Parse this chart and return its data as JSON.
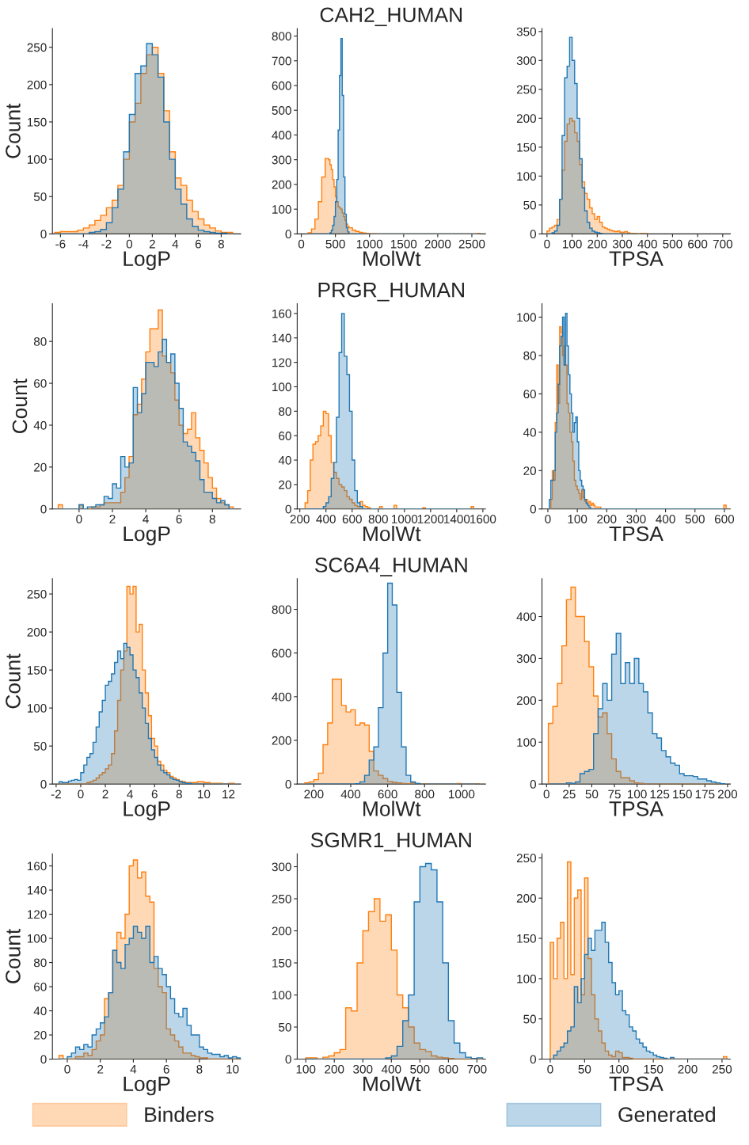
{
  "chart_data": [
    {
      "type": "histogram",
      "xlabel": "LogP",
      "ylabel": "Count",
      "xlim": [
        -6.7,
        9.7
      ],
      "xticks": [
        -6,
        -4,
        -2,
        0,
        2,
        4,
        6,
        8
      ],
      "ylim": [
        0,
        275
      ],
      "yticks": [
        0,
        50,
        100,
        150,
        200,
        250
      ],
      "bins": [
        -6.5,
        -6,
        -5.5,
        -5,
        -4.5,
        -4,
        -3.5,
        -3,
        -2.5,
        -2,
        -1.5,
        -1,
        -0.5,
        0,
        0.5,
        1,
        1.5,
        2,
        2.5,
        3,
        3.5,
        4,
        4.5,
        5,
        5.5,
        6,
        6.5,
        7,
        7.5,
        8,
        8.5,
        9
      ],
      "series": [
        {
          "color": "#ff7f0e",
          "values": [
            2,
            3,
            3,
            3,
            5,
            8,
            12,
            18,
            25,
            35,
            45,
            65,
            100,
            150,
            175,
            215,
            240,
            250,
            215,
            165,
            110,
            75,
            65,
            45,
            30,
            20,
            12,
            8,
            4,
            2,
            2
          ]
        },
        {
          "color": "#1f77b4",
          "values": [
            0,
            0,
            0,
            0,
            0,
            0,
            2,
            3,
            6,
            15,
            35,
            60,
            110,
            160,
            215,
            225,
            255,
            240,
            210,
            150,
            100,
            60,
            40,
            20,
            10,
            5,
            3,
            2,
            1,
            1,
            0
          ]
        }
      ]
    },
    {
      "type": "histogram",
      "title": "CAH2_HUMAN",
      "xlabel": "MolWt",
      "xlim": [
        -60,
        2700
      ],
      "xticks": [
        0,
        500,
        1000,
        1500,
        2000,
        2500
      ],
      "ylim": [
        0,
        830
      ],
      "yticks": [
        0,
        100,
        200,
        300,
        400,
        500,
        600,
        700,
        800
      ],
      "bins": [
        100,
        150,
        200,
        250,
        300,
        350,
        400,
        420,
        440,
        460,
        480,
        500,
        520,
        540,
        560,
        580,
        600,
        620,
        640,
        660,
        680,
        700,
        750,
        800,
        850,
        900,
        950,
        1000,
        1050,
        1100,
        2580,
        2620
      ],
      "series": [
        {
          "color": "#ff7f0e",
          "values": [
            5,
            20,
            60,
            130,
            230,
            305,
            300,
            280,
            260,
            220,
            190,
            150,
            130,
            110,
            105,
            100,
            85,
            70,
            55,
            40,
            30,
            25,
            15,
            10,
            6,
            4,
            2,
            1,
            1,
            0,
            2
          ]
        },
        {
          "color": "#1f77b4",
          "values": [
            0,
            0,
            0,
            0,
            0,
            0,
            0,
            5,
            15,
            35,
            70,
            130,
            220,
            420,
            640,
            790,
            560,
            230,
            80,
            25,
            8,
            0,
            0,
            0,
            0,
            0,
            0,
            0,
            0,
            0,
            0
          ]
        }
      ]
    },
    {
      "type": "histogram",
      "xlabel": "TPSA",
      "xlim": [
        -20,
        730
      ],
      "xticks": [
        0,
        100,
        200,
        300,
        400,
        500,
        600,
        700
      ],
      "ylim": [
        0,
        355
      ],
      "yticks": [
        0,
        50,
        100,
        150,
        200,
        250,
        300,
        350
      ],
      "bins": [
        0,
        10,
        20,
        30,
        40,
        50,
        60,
        70,
        80,
        90,
        100,
        110,
        120,
        130,
        140,
        150,
        160,
        170,
        180,
        190,
        200,
        210,
        220,
        230,
        240,
        250,
        260,
        270,
        280,
        290,
        300,
        310,
        320,
        330,
        340,
        350,
        360,
        370,
        380,
        390,
        400
      ],
      "series": [
        {
          "color": "#ff7f0e",
          "values": [
            5,
            10,
            12,
            15,
            25,
            60,
            110,
            160,
            190,
            200,
            195,
            175,
            160,
            120,
            90,
            70,
            60,
            45,
            35,
            25,
            30,
            20,
            12,
            10,
            8,
            6,
            5,
            4,
            5,
            3,
            3,
            4,
            2,
            1,
            1,
            1,
            0,
            1,
            1,
            1
          ]
        },
        {
          "color": "#1f77b4",
          "values": [
            0,
            0,
            2,
            5,
            15,
            60,
            170,
            270,
            290,
            340,
            300,
            260,
            200,
            130,
            80,
            40,
            20,
            10,
            5,
            3,
            2,
            1,
            0,
            0,
            0,
            0,
            0,
            0,
            0,
            0,
            0,
            0,
            0,
            0,
            0,
            0,
            0,
            0,
            0,
            0
          ]
        }
      ]
    },
    {
      "type": "histogram",
      "xlabel": "LogP",
      "ylabel": "Count",
      "xlim": [
        -1.6,
        9.7
      ],
      "xticks": [
        0,
        2,
        4,
        6,
        8
      ],
      "ylim": [
        0,
        98
      ],
      "yticks": [
        0,
        20,
        40,
        60,
        80
      ],
      "bins": [
        -1.25,
        -1,
        -0.75,
        -0.5,
        -0.25,
        0,
        0.25,
        0.5,
        0.75,
        1,
        1.25,
        1.5,
        1.75,
        2,
        2.25,
        2.5,
        2.75,
        3,
        3.25,
        3.5,
        3.75,
        4,
        4.25,
        4.5,
        4.75,
        5,
        5.25,
        5.5,
        5.75,
        6,
        6.25,
        6.5,
        6.75,
        7,
        7.25,
        7.5,
        7.75,
        8,
        8.25,
        8.5,
        8.75,
        9,
        9.25
      ],
      "series": [
        {
          "color": "#ff7f0e",
          "values": [
            2,
            0,
            0,
            0,
            0,
            2,
            0,
            0,
            1,
            1,
            2,
            3,
            3,
            3,
            3,
            8,
            15,
            25,
            45,
            50,
            62,
            75,
            86,
            86,
            95,
            73,
            70,
            65,
            52,
            40,
            36,
            38,
            46,
            34,
            28,
            22,
            15,
            10,
            5,
            3,
            2,
            1
          ]
        },
        {
          "color": "#1f77b4",
          "values": [
            0,
            0,
            0,
            0,
            0,
            2,
            0,
            1,
            1,
            2,
            2,
            6,
            5,
            12,
            10,
            25,
            20,
            22,
            58,
            46,
            55,
            70,
            70,
            68,
            75,
            81,
            70,
            74,
            60,
            48,
            32,
            30,
            27,
            23,
            14,
            8,
            8,
            5,
            3,
            4,
            2,
            0
          ]
        }
      ]
    },
    {
      "type": "histogram",
      "title": "PRGR_HUMAN",
      "xlabel": "MolWt",
      "xlim": [
        180,
        1620
      ],
      "xticks": [
        200,
        400,
        600,
        800,
        1000,
        1200,
        1400,
        1600
      ],
      "ylim": [
        0,
        168
      ],
      "yticks": [
        0,
        20,
        40,
        60,
        80,
        100,
        120,
        140,
        160
      ],
      "bins": [
        240,
        260,
        280,
        300,
        320,
        340,
        360,
        380,
        400,
        420,
        440,
        460,
        480,
        500,
        520,
        540,
        560,
        580,
        600,
        620,
        640,
        660,
        680,
        700,
        720,
        740,
        810,
        830,
        920,
        940,
        1140,
        1160,
        1510,
        1530
      ],
      "series": [
        {
          "color": "#ff7f0e",
          "values": [
            5,
            15,
            40,
            53,
            55,
            60,
            68,
            80,
            78,
            60,
            38,
            30,
            25,
            20,
            18,
            15,
            10,
            8,
            5,
            3,
            2,
            6,
            3,
            2,
            1,
            0,
            2,
            0,
            3,
            0,
            1,
            0,
            2
          ]
        },
        {
          "color": "#1f77b4",
          "values": [
            0,
            0,
            0,
            0,
            0,
            0,
            0,
            2,
            5,
            10,
            25,
            38,
            75,
            128,
            160,
            125,
            110,
            80,
            40,
            15,
            5,
            2,
            0,
            0,
            0,
            0,
            0,
            0,
            0,
            0,
            0,
            0,
            0
          ]
        }
      ]
    },
    {
      "type": "histogram",
      "xlabel": "TPSA",
      "xlim": [
        -20,
        620
      ],
      "xticks": [
        0,
        100,
        200,
        300,
        400,
        500,
        600
      ],
      "ylim": [
        0,
        107
      ],
      "yticks": [
        0,
        20,
        40,
        60,
        80,
        100
      ],
      "bins": [
        5,
        10,
        15,
        20,
        25,
        30,
        35,
        40,
        45,
        50,
        55,
        60,
        65,
        70,
        75,
        80,
        85,
        90,
        95,
        100,
        105,
        110,
        115,
        120,
        125,
        130,
        135,
        140,
        145,
        150,
        155,
        160,
        180,
        598,
        606
      ],
      "series": [
        {
          "color": "#ff7f0e",
          "values": [
            0,
            5,
            20,
            15,
            45,
            75,
            55,
            95,
            92,
            80,
            85,
            75,
            55,
            50,
            40,
            35,
            25,
            15,
            12,
            10,
            8,
            5,
            10,
            6,
            4,
            5,
            3,
            4,
            2,
            3,
            2,
            1,
            0,
            2
          ]
        },
        {
          "color": "#1f77b4",
          "values": [
            5,
            15,
            15,
            20,
            40,
            50,
            65,
            85,
            90,
            100,
            75,
            102,
            85,
            70,
            60,
            50,
            40,
            45,
            48,
            35,
            20,
            15,
            12,
            10,
            5,
            3,
            2,
            1,
            0,
            0,
            0,
            0,
            0,
            0
          ]
        }
      ]
    },
    {
      "type": "histogram",
      "xlabel": "LogP",
      "ylabel": "Count",
      "xlim": [
        -2.3,
        13
      ],
      "xticks": [
        -2,
        0,
        2,
        4,
        6,
        8,
        10,
        12
      ],
      "ylim": [
        0,
        270
      ],
      "yticks": [
        0,
        50,
        100,
        150,
        200,
        250
      ],
      "bins": [
        -1.75,
        -1.5,
        -1.25,
        -1,
        -0.75,
        -0.5,
        -0.25,
        0,
        0.25,
        0.5,
        0.75,
        1,
        1.25,
        1.5,
        1.75,
        2,
        2.25,
        2.5,
        2.75,
        3,
        3.25,
        3.5,
        3.75,
        4,
        4.25,
        4.5,
        4.75,
        5,
        5.25,
        5.5,
        5.75,
        6,
        6.25,
        6.5,
        6.75,
        7,
        7.25,
        7.5,
        7.75,
        8,
        8.25,
        8.5,
        8.75,
        9,
        9.5,
        10,
        10.5,
        11,
        11.5,
        12,
        12.5
      ],
      "series": [
        {
          "color": "#ff7f0e",
          "values": [
            0,
            0,
            0,
            0,
            0,
            0,
            0,
            0,
            0,
            2,
            3,
            5,
            8,
            12,
            15,
            20,
            25,
            40,
            70,
            110,
            150,
            175,
            260,
            250,
            260,
            200,
            210,
            150,
            120,
            90,
            60,
            50,
            30,
            25,
            18,
            15,
            10,
            8,
            6,
            4,
            3,
            2,
            2,
            2,
            3,
            2,
            1,
            1,
            0,
            1
          ]
        },
        {
          "color": "#1f77b4",
          "values": [
            3,
            2,
            2,
            4,
            5,
            6,
            5,
            15,
            25,
            35,
            40,
            55,
            75,
            95,
            110,
            130,
            135,
            145,
            160,
            175,
            165,
            185,
            180,
            170,
            150,
            140,
            120,
            100,
            80,
            60,
            45,
            35,
            25,
            18,
            15,
            12,
            8,
            6,
            5,
            3,
            2,
            1,
            1,
            0,
            0,
            0,
            0,
            0,
            0,
            0
          ]
        }
      ]
    },
    {
      "type": "histogram",
      "title": "SC6A4_HUMAN",
      "xlabel": "MolWt",
      "xlim": [
        110,
        1130
      ],
      "xticks": [
        200,
        400,
        600,
        800,
        1000
      ],
      "ylim": [
        0,
        940
      ],
      "yticks": [
        0,
        200,
        400,
        600,
        800
      ],
      "bins": [
        150,
        175,
        200,
        225,
        250,
        275,
        300,
        325,
        350,
        375,
        400,
        425,
        450,
        475,
        500,
        525,
        550,
        575,
        600,
        625,
        650,
        675,
        700,
        725,
        750,
        775,
        800,
        825,
        975,
        1000,
        1075,
        1100
      ],
      "series": [
        {
          "color": "#ff7f0e",
          "values": [
            5,
            10,
            20,
            50,
            180,
            280,
            480,
            480,
            360,
            330,
            340,
            270,
            280,
            270,
            150,
            60,
            40,
            25,
            12,
            8,
            5,
            3,
            2,
            5,
            3,
            2,
            1,
            0,
            3,
            0,
            2
          ]
        },
        {
          "color": "#1f77b4",
          "values": [
            0,
            0,
            0,
            0,
            0,
            0,
            0,
            0,
            0,
            0,
            0,
            2,
            10,
            40,
            110,
            170,
            350,
            600,
            920,
            820,
            420,
            170,
            40,
            10,
            3,
            0,
            0,
            0,
            0,
            0,
            0
          ]
        }
      ]
    },
    {
      "type": "histogram",
      "xlabel": "TPSA",
      "xlim": [
        -5,
        203
      ],
      "xticks": [
        0,
        25,
        50,
        75,
        100,
        125,
        150,
        175,
        200
      ],
      "ylim": [
        0,
        490
      ],
      "yticks": [
        0,
        100,
        200,
        300,
        400
      ],
      "bins": [
        2,
        7,
        12,
        17,
        22,
        27,
        32,
        37,
        42,
        47,
        52,
        57,
        62,
        67,
        72,
        77,
        82,
        87,
        92,
        97,
        102,
        107,
        112,
        117,
        122,
        127,
        132,
        137,
        142,
        147,
        152,
        157,
        162,
        167,
        172,
        177,
        182,
        187,
        192,
        197
      ],
      "series": [
        {
          "color": "#ff7f0e",
          "values": [
            145,
            185,
            240,
            330,
            440,
            470,
            400,
            400,
            340,
            280,
            210,
            160,
            170,
            120,
            60,
            30,
            15,
            15,
            8,
            3,
            2,
            0,
            0,
            0,
            0,
            0,
            0,
            0,
            0,
            0,
            0,
            0,
            0,
            0,
            0,
            0,
            0,
            0,
            0
          ]
        },
        {
          "color": "#1f77b4",
          "values": [
            0,
            0,
            0,
            0,
            3,
            2,
            5,
            25,
            30,
            35,
            120,
            180,
            240,
            200,
            310,
            360,
            240,
            290,
            240,
            300,
            240,
            220,
            170,
            120,
            110,
            80,
            65,
            50,
            45,
            25,
            20,
            20,
            18,
            12,
            12,
            8,
            5,
            3,
            1
          ]
        }
      ]
    },
    {
      "type": "histogram",
      "xlabel": "LogP",
      "ylabel": "Count",
      "xlim": [
        -0.9,
        10.5
      ],
      "xticks": [
        0,
        2,
        4,
        6,
        8,
        10
      ],
      "ylim": [
        0,
        170
      ],
      "yticks": [
        0,
        20,
        40,
        60,
        80,
        100,
        120,
        140,
        160
      ],
      "bins": [
        -0.5,
        -0.25,
        0,
        0.25,
        0.5,
        0.75,
        1,
        1.25,
        1.5,
        1.75,
        2,
        2.25,
        2.5,
        2.75,
        3,
        3.25,
        3.5,
        3.75,
        4,
        4.25,
        4.5,
        4.75,
        5,
        5.25,
        5.5,
        5.75,
        6,
        6.25,
        6.5,
        6.75,
        7,
        7.25,
        7.5,
        7.75,
        8,
        8.25,
        8.5,
        8.75,
        9,
        9.25,
        9.5,
        9.75,
        10,
        10.25,
        10.5
      ],
      "series": [
        {
          "color": "#ff7f0e",
          "values": [
            3,
            0,
            0,
            0,
            2,
            2,
            5,
            3,
            8,
            15,
            20,
            50,
            55,
            90,
            105,
            100,
            120,
            160,
            165,
            150,
            155,
            135,
            130,
            75,
            60,
            55,
            25,
            20,
            15,
            10,
            5,
            5,
            3,
            2,
            1,
            1,
            0,
            0,
            0,
            0,
            0,
            0,
            0,
            0
          ]
        },
        {
          "color": "#1f77b4",
          "values": [
            0,
            0,
            2,
            5,
            10,
            8,
            12,
            10,
            20,
            25,
            30,
            35,
            55,
            90,
            80,
            75,
            95,
            100,
            110,
            105,
            100,
            110,
            80,
            85,
            75,
            70,
            60,
            50,
            38,
            35,
            42,
            28,
            20,
            20,
            10,
            8,
            5,
            4,
            4,
            2,
            3,
            1,
            2,
            1
          ]
        }
      ]
    },
    {
      "type": "histogram",
      "title": "SGMR1_HUMAN",
      "xlabel": "MolWt",
      "xlim": [
        70,
        730
      ],
      "xticks": [
        100,
        200,
        300,
        400,
        500,
        600,
        700
      ],
      "ylim": [
        0,
        320
      ],
      "yticks": [
        0,
        50,
        100,
        150,
        200,
        250,
        300
      ],
      "bins": [
        100,
        120,
        140,
        160,
        180,
        200,
        220,
        240,
        260,
        280,
        300,
        320,
        340,
        360,
        380,
        400,
        420,
        440,
        460,
        480,
        500,
        520,
        540,
        560,
        580,
        600,
        620,
        640,
        660,
        680,
        700,
        720
      ],
      "series": [
        {
          "color": "#ff7f0e",
          "values": [
            2,
            2,
            0,
            3,
            5,
            10,
            15,
            80,
            75,
            150,
            200,
            230,
            250,
            215,
            225,
            170,
            100,
            80,
            50,
            25,
            15,
            12,
            5,
            3,
            2,
            1,
            0,
            0,
            0,
            0,
            0
          ]
        },
        {
          "color": "#1f77b4",
          "values": [
            0,
            0,
            0,
            0,
            0,
            0,
            0,
            0,
            0,
            0,
            0,
            0,
            0,
            0,
            2,
            5,
            20,
            60,
            100,
            245,
            300,
            305,
            295,
            245,
            150,
            60,
            25,
            10,
            3,
            1,
            2
          ]
        }
      ]
    },
    {
      "type": "histogram",
      "xlabel": "TPSA",
      "xlim": [
        -12,
        262
      ],
      "xticks": [
        0,
        50,
        100,
        150,
        200,
        250
      ],
      "ylim": [
        0,
        255
      ],
      "yticks": [
        0,
        50,
        100,
        150,
        200,
        250
      ],
      "legend": "bottom",
      "bins": [
        0,
        5,
        10,
        15,
        20,
        25,
        30,
        35,
        40,
        45,
        50,
        55,
        60,
        65,
        70,
        75,
        80,
        85,
        90,
        95,
        100,
        105,
        110,
        115,
        120,
        125,
        130,
        135,
        140,
        145,
        150,
        155,
        160,
        165,
        170,
        175,
        180,
        252,
        257
      ],
      "series": [
        {
          "name": "Binders",
          "color": "#ff7f0e",
          "values": [
            145,
            100,
            150,
            170,
            100,
            245,
            105,
            200,
            210,
            80,
            225,
            125,
            80,
            50,
            35,
            20,
            10,
            5,
            3,
            10,
            8,
            2,
            2,
            1,
            0,
            0,
            0,
            0,
            0,
            0,
            0,
            0,
            0,
            0,
            0,
            0,
            0,
            3
          ]
        },
        {
          "name": "Generated",
          "color": "#1f77b4",
          "values": [
            0,
            5,
            10,
            15,
            20,
            35,
            40,
            90,
            70,
            100,
            130,
            150,
            135,
            160,
            160,
            170,
            145,
            120,
            95,
            80,
            85,
            60,
            55,
            40,
            35,
            25,
            20,
            15,
            10,
            8,
            5,
            3,
            2,
            1,
            0,
            2,
            0,
            0
          ]
        }
      ]
    }
  ]
}
